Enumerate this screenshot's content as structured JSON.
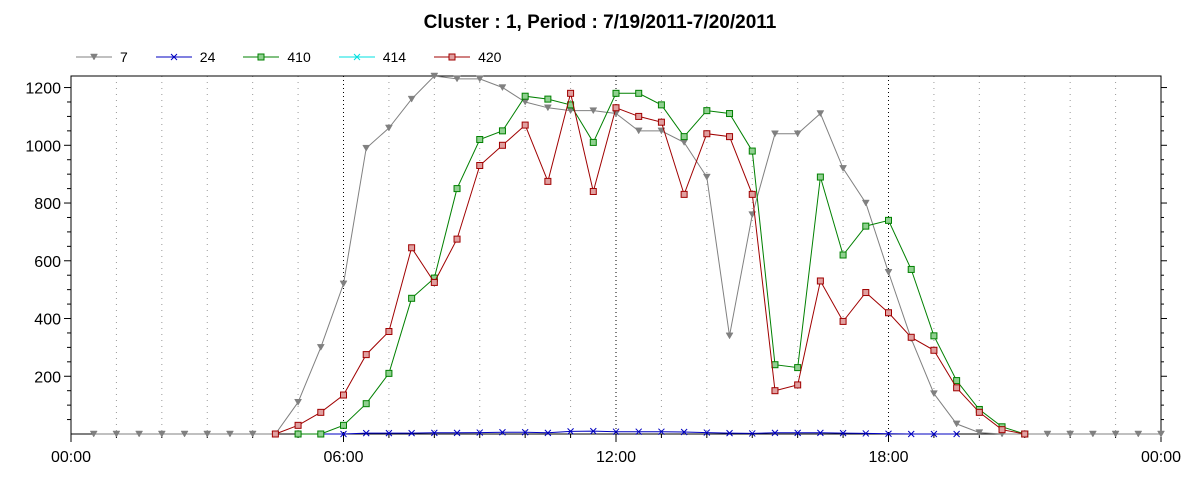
{
  "chart_data": {
    "type": "line",
    "title": "Cluster : 1, Period : 7/19/2011-7/20/2011",
    "xlabel": "",
    "ylabel": "",
    "x_ticks": [
      {
        "label": "00:00",
        "hour": 0
      },
      {
        "label": "06:00",
        "hour": 6
      },
      {
        "label": "12:00",
        "hour": 12
      },
      {
        "label": "18:00",
        "hour": 18
      },
      {
        "label": "00:00",
        "hour": 24
      }
    ],
    "y_ticks": [
      200,
      400,
      600,
      800,
      1000,
      1200
    ],
    "xlim": [
      0,
      24
    ],
    "ylim": [
      0,
      1240
    ],
    "grid": true,
    "legend_position": "top-left",
    "series": [
      {
        "name": "7",
        "color": "#808080",
        "marker": "triangle-down",
        "points": [
          [
            0.5,
            0
          ],
          [
            1,
            0
          ],
          [
            1.5,
            0
          ],
          [
            2,
            0
          ],
          [
            2.5,
            0
          ],
          [
            3,
            0
          ],
          [
            3.5,
            0
          ],
          [
            4,
            0
          ],
          [
            4.5,
            0
          ],
          [
            5,
            110
          ],
          [
            5.5,
            300
          ],
          [
            6,
            520
          ],
          [
            6.5,
            990
          ],
          [
            7,
            1060
          ],
          [
            7.5,
            1160
          ],
          [
            8,
            1240
          ],
          [
            8.5,
            1230
          ],
          [
            9,
            1230
          ],
          [
            9.5,
            1200
          ],
          [
            10,
            1150
          ],
          [
            10.5,
            1130
          ],
          [
            11,
            1120
          ],
          [
            11.5,
            1120
          ],
          [
            12,
            1110
          ],
          [
            12.5,
            1050
          ],
          [
            13,
            1050
          ],
          [
            13.5,
            1010
          ],
          [
            14,
            890
          ],
          [
            14.5,
            340
          ],
          [
            15,
            760
          ],
          [
            15.5,
            1040
          ],
          [
            16,
            1040
          ],
          [
            16.5,
            1110
          ],
          [
            17,
            920
          ],
          [
            17.5,
            800
          ],
          [
            18,
            560
          ],
          [
            18.5,
            330
          ],
          [
            19,
            140
          ],
          [
            19.5,
            35
          ],
          [
            20,
            5
          ],
          [
            20.5,
            0
          ],
          [
            21,
            0
          ],
          [
            21.5,
            0
          ],
          [
            22,
            0
          ],
          [
            22.5,
            0
          ],
          [
            23,
            0
          ],
          [
            23.5,
            0
          ],
          [
            24,
            0
          ]
        ]
      },
      {
        "name": "24",
        "color": "#0000c0",
        "marker": "x",
        "points": [
          [
            5,
            0
          ],
          [
            5.5,
            0
          ],
          [
            6,
            0
          ],
          [
            6.5,
            3
          ],
          [
            7,
            3
          ],
          [
            7.5,
            3
          ],
          [
            8,
            4
          ],
          [
            8.5,
            4
          ],
          [
            9,
            5
          ],
          [
            9.5,
            6
          ],
          [
            10,
            6
          ],
          [
            10.5,
            4
          ],
          [
            11,
            9
          ],
          [
            11.5,
            10
          ],
          [
            12,
            8
          ],
          [
            12.5,
            8
          ],
          [
            13,
            8
          ],
          [
            13.5,
            7
          ],
          [
            14,
            5
          ],
          [
            14.5,
            3
          ],
          [
            15,
            2
          ],
          [
            15.5,
            4
          ],
          [
            16,
            4
          ],
          [
            16.5,
            4
          ],
          [
            17,
            3
          ],
          [
            17.5,
            2
          ],
          [
            18,
            1
          ],
          [
            18.5,
            0
          ],
          [
            19,
            0
          ],
          [
            19.5,
            0
          ]
        ]
      },
      {
        "name": "410",
        "color": "#008000",
        "marker": "square",
        "fill": "#90d090",
        "points": [
          [
            5,
            0
          ],
          [
            5.5,
            0
          ],
          [
            6,
            30
          ],
          [
            6.5,
            105
          ],
          [
            7,
            210
          ],
          [
            7.5,
            470
          ],
          [
            8,
            540
          ],
          [
            8.5,
            850
          ],
          [
            9,
            1020
          ],
          [
            9.5,
            1050
          ],
          [
            10,
            1170
          ],
          [
            10.5,
            1160
          ],
          [
            11,
            1140
          ],
          [
            11.5,
            1010
          ],
          [
            12,
            1180
          ],
          [
            12.5,
            1180
          ],
          [
            13,
            1140
          ],
          [
            13.5,
            1030
          ],
          [
            14,
            1120
          ],
          [
            14.5,
            1110
          ],
          [
            15,
            980
          ],
          [
            15.5,
            240
          ],
          [
            16,
            230
          ],
          [
            16.5,
            890
          ],
          [
            17,
            620
          ],
          [
            17.5,
            720
          ],
          [
            18,
            740
          ],
          [
            18.5,
            570
          ],
          [
            19,
            340
          ],
          [
            19.5,
            185
          ],
          [
            20,
            85
          ],
          [
            20.5,
            25
          ],
          [
            21,
            0
          ]
        ]
      },
      {
        "name": "414",
        "color": "#00e0e0",
        "marker": "x",
        "points": []
      },
      {
        "name": "420",
        "color": "#a00000",
        "marker": "square",
        "fill": "#e0a0a0",
        "points": [
          [
            4.5,
            0
          ],
          [
            5,
            30
          ],
          [
            5.5,
            75
          ],
          [
            6,
            135
          ],
          [
            6.5,
            275
          ],
          [
            7,
            355
          ],
          [
            7.5,
            645
          ],
          [
            8,
            525
          ],
          [
            8.5,
            675
          ],
          [
            9,
            930
          ],
          [
            9.5,
            1000
          ],
          [
            10,
            1070
          ],
          [
            10.5,
            875
          ],
          [
            11,
            1180
          ],
          [
            11.5,
            840
          ],
          [
            12,
            1130
          ],
          [
            12.5,
            1100
          ],
          [
            13,
            1080
          ],
          [
            13.5,
            830
          ],
          [
            14,
            1040
          ],
          [
            14.5,
            1030
          ],
          [
            15,
            830
          ],
          [
            15.5,
            150
          ],
          [
            16,
            170
          ],
          [
            16.5,
            530
          ],
          [
            17,
            390
          ],
          [
            17.5,
            490
          ],
          [
            18,
            420
          ],
          [
            18.5,
            335
          ],
          [
            19,
            290
          ],
          [
            19.5,
            160
          ],
          [
            20,
            75
          ],
          [
            20.5,
            15
          ],
          [
            21,
            0
          ]
        ]
      }
    ]
  }
}
